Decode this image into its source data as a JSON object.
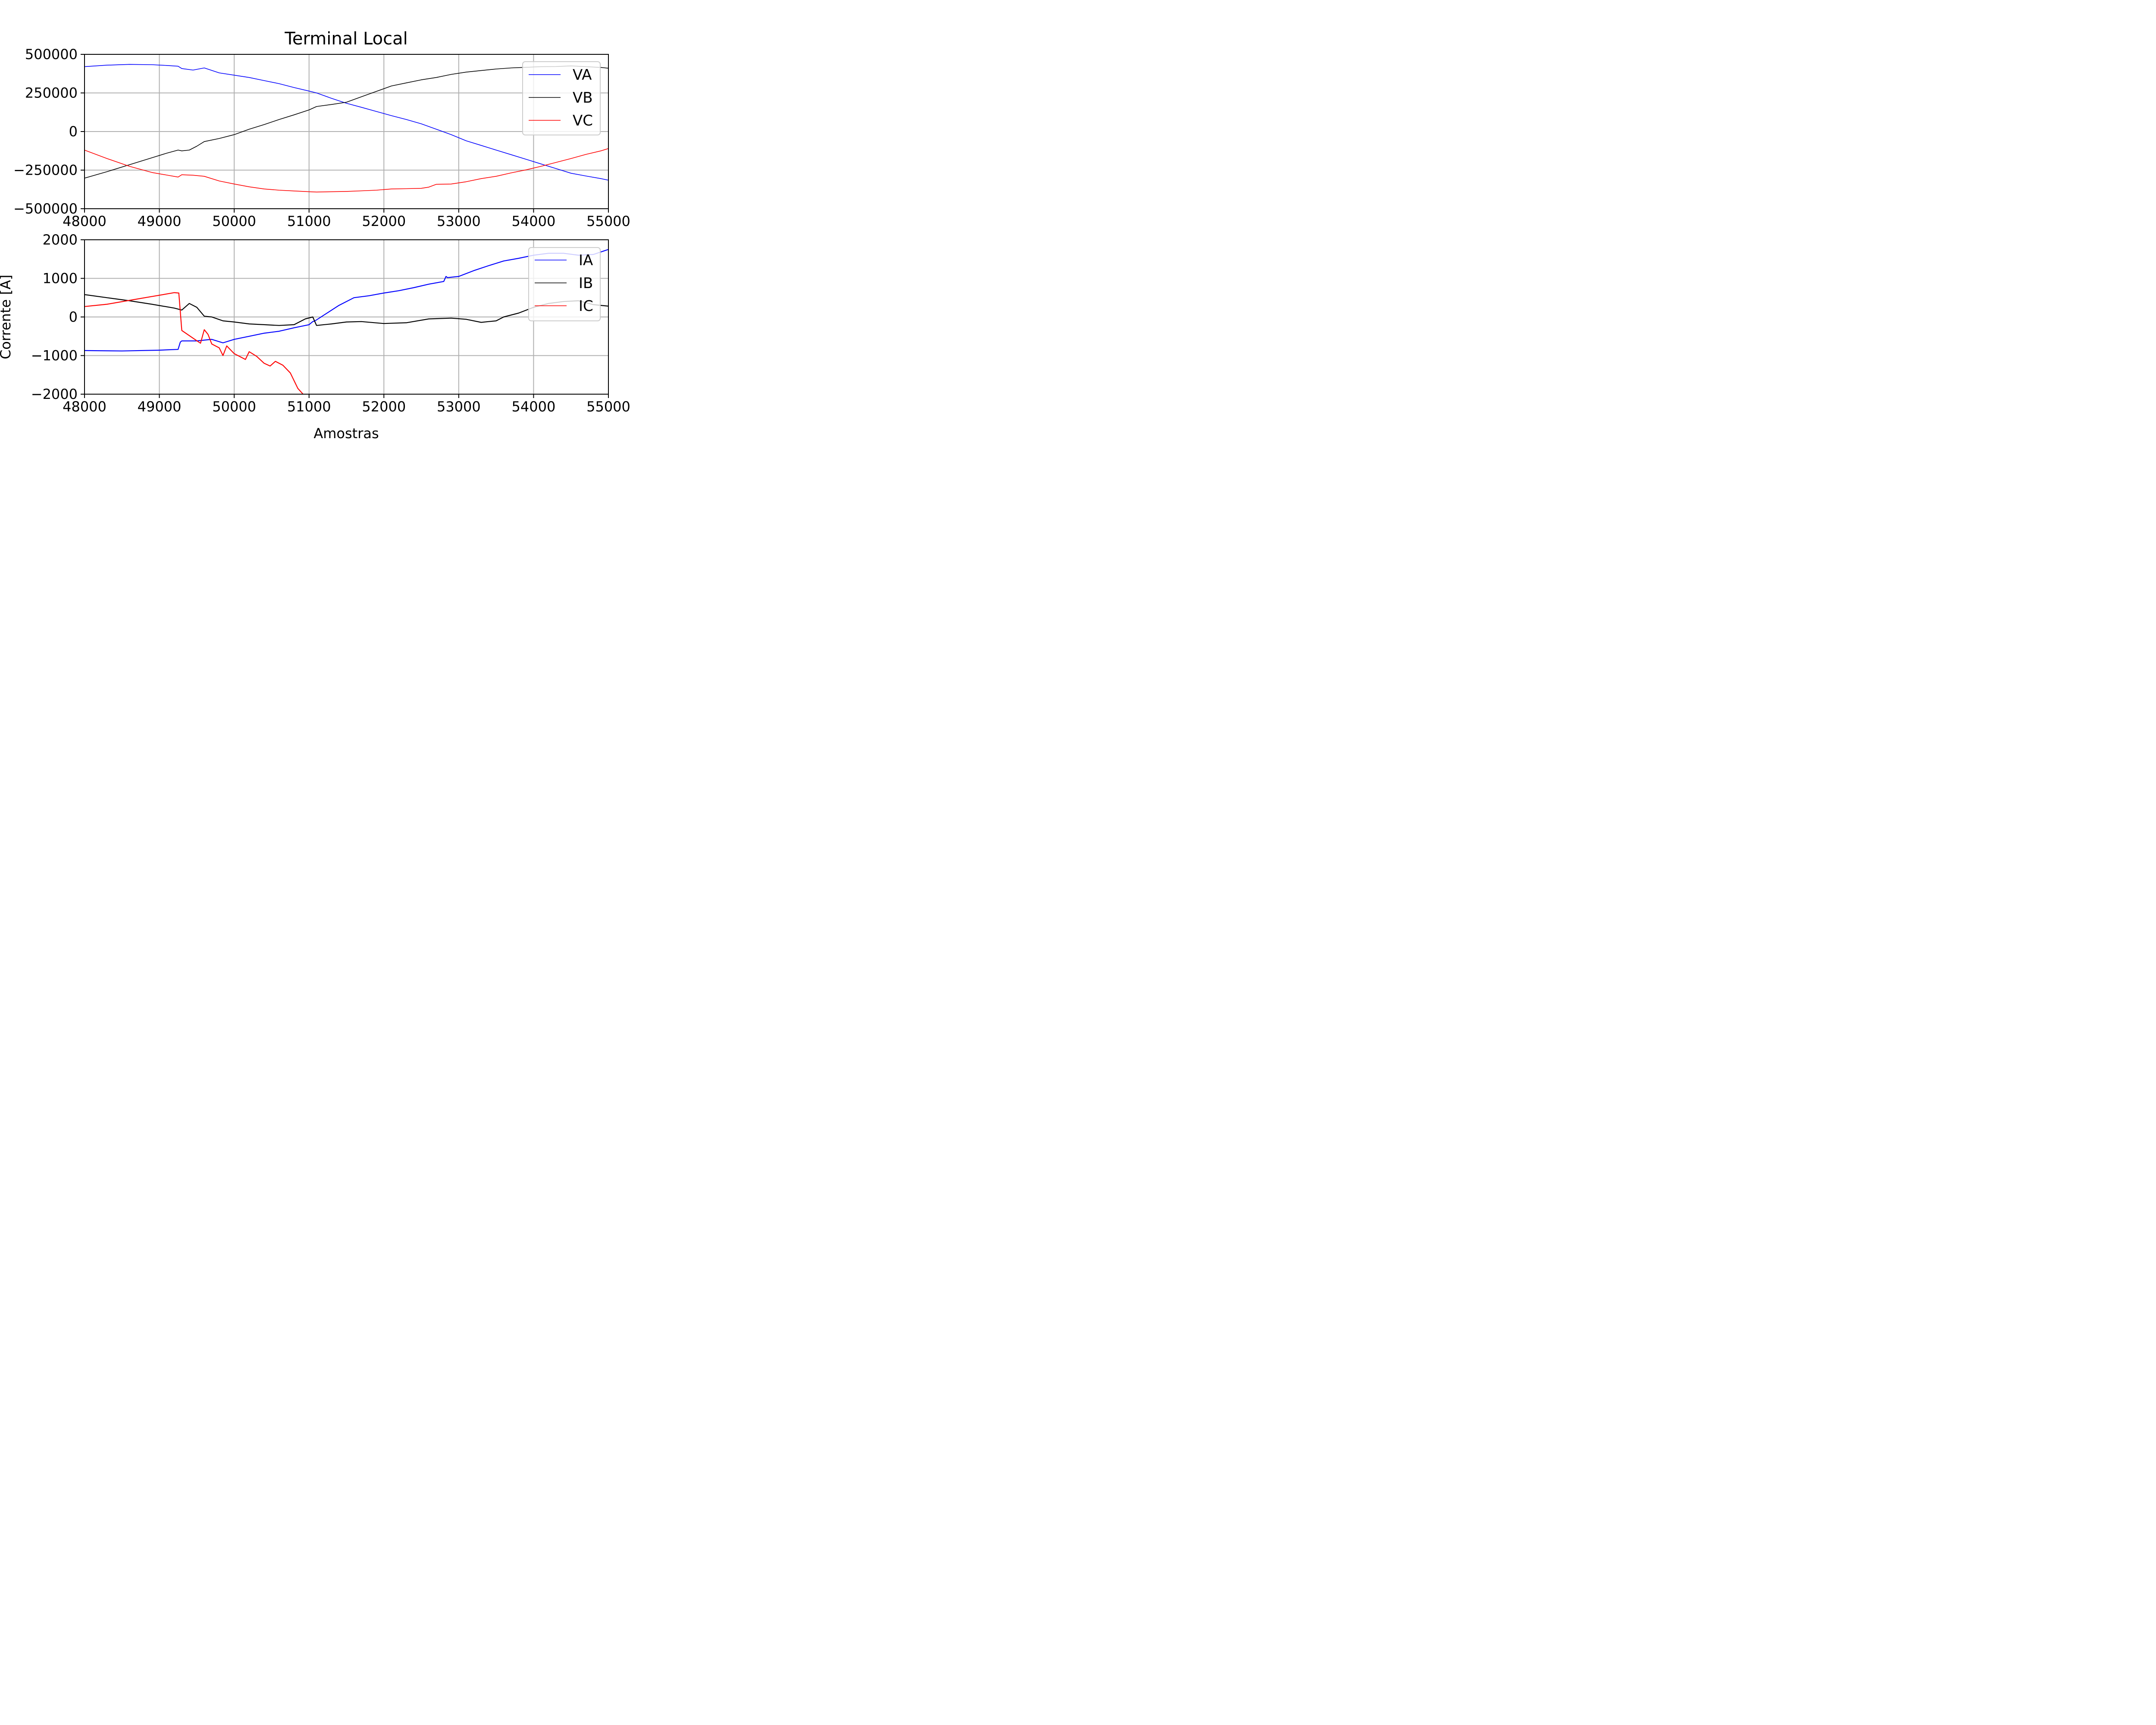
{
  "chart_data": [
    {
      "type": "line",
      "title": "Terminal Local",
      "xlabel": "",
      "ylabel": "",
      "xlim": [
        48000,
        55000
      ],
      "ylim": [
        -500000,
        500000
      ],
      "xticks": [
        48000,
        49000,
        50000,
        51000,
        52000,
        53000,
        54000,
        55000
      ],
      "yticks": [
        -500000,
        -250000,
        0,
        250000,
        500000
      ],
      "xtick_labels": [
        "48000",
        "49000",
        "50000",
        "51000",
        "52000",
        "53000",
        "54000",
        "55000"
      ],
      "ytick_labels": [
        "−500000",
        "−250000",
        "0",
        "250000",
        "500000"
      ],
      "grid": true,
      "legend": "top-right",
      "series": [
        {
          "name": "VA",
          "color": "#0000ff",
          "x": [
            48000,
            48300,
            48600,
            48900,
            49100,
            49250,
            49300,
            49450,
            49600,
            49800,
            50000,
            50200,
            50400,
            50600,
            50800,
            51000,
            51100,
            51300,
            51500,
            51700,
            51900,
            52100,
            52300,
            52500,
            52700,
            52900,
            53100,
            53300,
            53500,
            53700,
            53900,
            54100,
            54300,
            54500,
            54700,
            54900,
            55000
          ],
          "y": [
            420000,
            430000,
            435000,
            433000,
            428000,
            423000,
            408000,
            398000,
            412000,
            380000,
            365000,
            350000,
            330000,
            310000,
            285000,
            262000,
            250000,
            215000,
            183000,
            157000,
            130000,
            103000,
            78000,
            50000,
            15000,
            -20000,
            -60000,
            -90000,
            -120000,
            -150000,
            -180000,
            -210000,
            -240000,
            -270000,
            -288000,
            -305000,
            -315000
          ]
        },
        {
          "name": "VB",
          "color": "#000000",
          "x": [
            48000,
            48300,
            48600,
            48900,
            49100,
            49250,
            49300,
            49400,
            49500,
            49600,
            49800,
            50000,
            50200,
            50400,
            50600,
            50800,
            51000,
            51100,
            51300,
            51500,
            51700,
            51900,
            52100,
            52300,
            52500,
            52700,
            52900,
            53100,
            53300,
            53500,
            53700,
            53900,
            54100,
            54300,
            54500,
            54700,
            54900,
            55000
          ],
          "y": [
            -302000,
            -260000,
            -215000,
            -170000,
            -140000,
            -120000,
            -125000,
            -120000,
            -95000,
            -65000,
            -45000,
            -20000,
            15000,
            45000,
            78000,
            108000,
            140000,
            162000,
            175000,
            190000,
            225000,
            260000,
            295000,
            315000,
            335000,
            350000,
            370000,
            385000,
            395000,
            405000,
            412000,
            416000,
            420000,
            421000,
            425000,
            420000,
            415000,
            410000
          ]
        },
        {
          "name": "VC",
          "color": "#ff0000",
          "x": [
            48000,
            48300,
            48600,
            48900,
            49100,
            49250,
            49300,
            49450,
            49600,
            49800,
            50000,
            50200,
            50400,
            50600,
            50800,
            51000,
            51100,
            51300,
            51500,
            51700,
            51900,
            52100,
            52300,
            52500,
            52600,
            52700,
            52900,
            53100,
            53300,
            53500,
            53700,
            53900,
            54100,
            54300,
            54500,
            54700,
            54900,
            55000
          ],
          "y": [
            -120000,
            -175000,
            -225000,
            -265000,
            -282000,
            -295000,
            -280000,
            -283000,
            -290000,
            -320000,
            -340000,
            -358000,
            -372000,
            -380000,
            -385000,
            -390000,
            -392000,
            -390000,
            -388000,
            -384000,
            -380000,
            -372000,
            -370000,
            -368000,
            -360000,
            -342000,
            -340000,
            -325000,
            -305000,
            -290000,
            -268000,
            -248000,
            -225000,
            -200000,
            -175000,
            -148000,
            -125000,
            -110000
          ]
        }
      ]
    },
    {
      "type": "line",
      "title": "",
      "xlabel": "Amostras",
      "ylabel": "Corrente [A]",
      "xlim": [
        48000,
        55000
      ],
      "ylim": [
        -2000,
        2000
      ],
      "xticks": [
        48000,
        49000,
        50000,
        51000,
        52000,
        53000,
        54000,
        55000
      ],
      "yticks": [
        -2000,
        -1000,
        0,
        1000,
        2000
      ],
      "xtick_labels": [
        "48000",
        "49000",
        "50000",
        "51000",
        "52000",
        "53000",
        "54000",
        "55000"
      ],
      "ytick_labels": [
        "−2000",
        "−1000",
        "0",
        "1000",
        "2000"
      ],
      "grid": true,
      "legend": "top-right",
      "series": [
        {
          "name": "IA",
          "color": "#0000ff",
          "x": [
            48000,
            48500,
            49000,
            49250,
            49280,
            49300,
            49500,
            49700,
            49850,
            50000,
            50200,
            50400,
            50600,
            50800,
            51000,
            51050,
            51080,
            51200,
            51400,
            51600,
            51800,
            52000,
            52200,
            52400,
            52600,
            52800,
            52830,
            52850,
            53000,
            53200,
            53400,
            53600,
            53800,
            54000,
            54200,
            54400,
            54600,
            54800,
            55000
          ],
          "y": [
            -870,
            -880,
            -860,
            -840,
            -650,
            -620,
            -620,
            -580,
            -670,
            -580,
            -500,
            -420,
            -370,
            -280,
            -200,
            -120,
            -100,
            50,
            300,
            500,
            550,
            620,
            680,
            760,
            850,
            920,
            1050,
            1020,
            1050,
            1200,
            1330,
            1450,
            1520,
            1600,
            1650,
            1650,
            1600,
            1620,
            1750
          ]
        },
        {
          "name": "IB",
          "color": "#000000",
          "x": [
            48000,
            48300,
            48600,
            48900,
            49200,
            49300,
            49400,
            49500,
            49600,
            49700,
            49850,
            50000,
            50200,
            50400,
            50600,
            50800,
            50950,
            51050,
            51100,
            51300,
            51500,
            51700,
            52000,
            52300,
            52600,
            52900,
            53100,
            53300,
            53400,
            53500,
            53600,
            53800,
            54000,
            54200,
            54400,
            54600,
            54800,
            55000
          ],
          "y": [
            580,
            500,
            420,
            330,
            230,
            180,
            350,
            250,
            20,
            0,
            -100,
            -130,
            -180,
            -200,
            -220,
            -200,
            -50,
            0,
            -220,
            -180,
            -130,
            -120,
            -170,
            -150,
            -50,
            -30,
            -60,
            -140,
            -120,
            -100,
            0,
            100,
            250,
            350,
            400,
            420,
            320,
            280
          ]
        },
        {
          "name": "IC",
          "color": "#ff0000",
          "x": [
            48000,
            48300,
            48600,
            48900,
            49200,
            49260,
            49300,
            49450,
            49550,
            49600,
            49650,
            49700,
            49800,
            49850,
            49900,
            50000,
            50150,
            50200,
            50300,
            50400,
            50480,
            50550,
            50650,
            50750,
            50850,
            50920
          ],
          "y": [
            270,
            330,
            430,
            530,
            630,
            620,
            -350,
            -550,
            -680,
            -330,
            -450,
            -700,
            -800,
            -1000,
            -750,
            -950,
            -1100,
            -900,
            -1020,
            -1200,
            -1270,
            -1150,
            -1250,
            -1450,
            -1850,
            -2000
          ]
        }
      ]
    }
  ]
}
